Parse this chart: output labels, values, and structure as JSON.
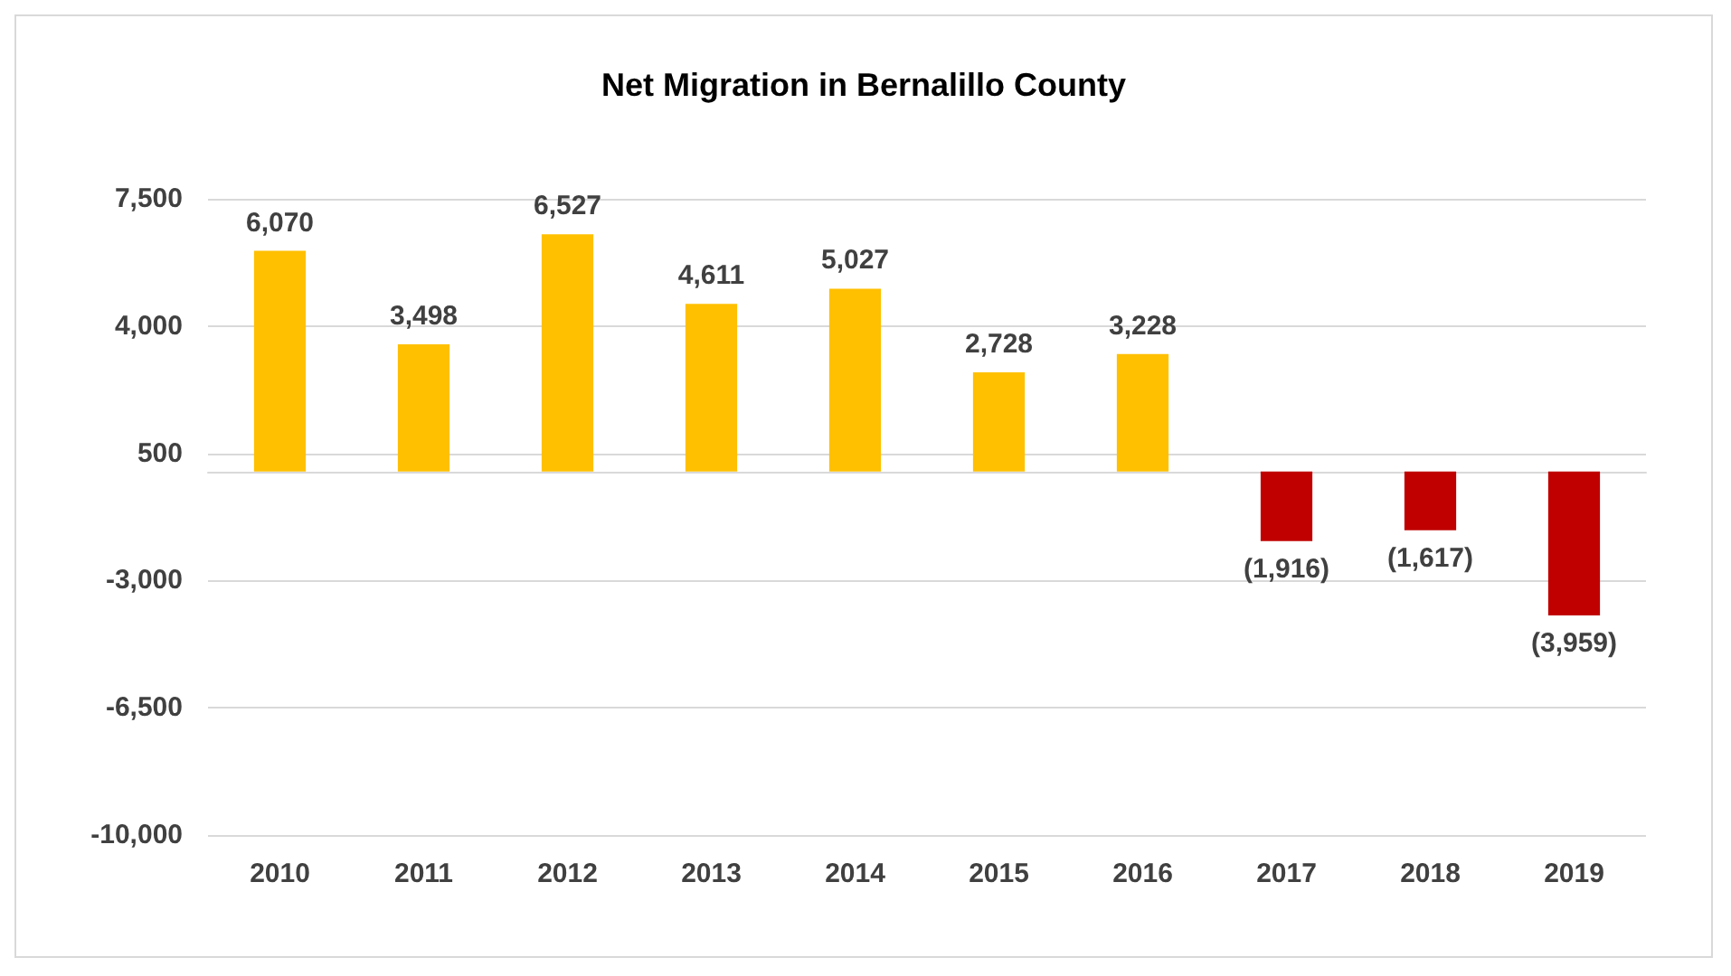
{
  "chart_data": {
    "type": "bar",
    "title": "Net Migration in Bernalillo County",
    "categories": [
      "2010",
      "2011",
      "2012",
      "2013",
      "2014",
      "2015",
      "2016",
      "2017",
      "2018",
      "2019"
    ],
    "values": [
      6070,
      3498,
      6527,
      4611,
      5027,
      2728,
      3228,
      -1916,
      -1617,
      -3959
    ],
    "colors": [
      "#ffc000",
      "#ffc000",
      "#ffc000",
      "#ffc000",
      "#ffc000",
      "#ffc000",
      "#ffc000",
      "#c00000",
      "#c00000",
      "#c00000"
    ],
    "value_labels": [
      "6,070",
      "3,498",
      "6,527",
      "4,611",
      "5,027",
      "2,728",
      "3,228",
      "(1,916)",
      "(1,617)",
      "(3,959)"
    ],
    "ylim": [
      -10000,
      7500
    ],
    "yticks": [
      {
        "value": 7500,
        "label": "7,500"
      },
      {
        "value": 4000,
        "label": "4,000"
      },
      {
        "value": 500,
        "label": "500"
      },
      {
        "value": -3000,
        "label": "-3,000"
      },
      {
        "value": -6500,
        "label": "-6,500"
      },
      {
        "value": -10000,
        "label": "-10,000"
      }
    ],
    "grid": "y"
  }
}
